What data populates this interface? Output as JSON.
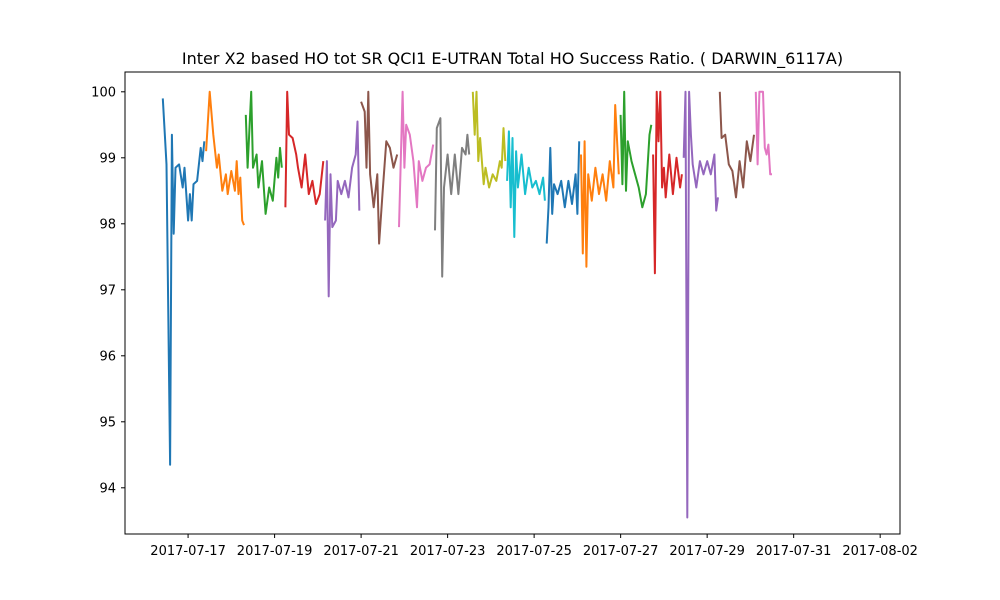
{
  "chart_data": {
    "type": "line",
    "title": "Inter X2 based HO tot SR QCI1 E-UTRAN Total HO Success Ratio. ( DARWIN_6117A)",
    "xlabel": "",
    "ylabel": "",
    "xlim": [
      "2017-07-15 13:00",
      "2017-08-02 11:00"
    ],
    "ylim": [
      93.3,
      100.3
    ],
    "x_ticks": [
      "2017-07-17",
      "2017-07-19",
      "2017-07-21",
      "2017-07-23",
      "2017-07-25",
      "2017-07-27",
      "2017-07-29",
      "2017-07-31",
      "2017-08-02"
    ],
    "y_ticks": [
      94,
      95,
      96,
      97,
      98,
      99,
      100
    ],
    "grid": false,
    "legend": "none",
    "series": [
      {
        "color": "#1f77b4",
        "points": [
          [
            "2017-07-16 10:00",
            99.9
          ],
          [
            "2017-07-16 12:00",
            98.9
          ],
          [
            "2017-07-16 14:00",
            94.35
          ],
          [
            "2017-07-16 15:00",
            99.35
          ],
          [
            "2017-07-16 16:00",
            97.85
          ],
          [
            "2017-07-16 17:00",
            98.85
          ],
          [
            "2017-07-16 19:00",
            98.9
          ],
          [
            "2017-07-16 21:00",
            98.55
          ],
          [
            "2017-07-16 22:00",
            98.85
          ],
          [
            "2017-07-17 00:00",
            98.05
          ],
          [
            "2017-07-17 01:00",
            98.45
          ],
          [
            "2017-07-17 02:00",
            98.05
          ],
          [
            "2017-07-17 03:00",
            98.6
          ],
          [
            "2017-07-17 05:00",
            98.65
          ],
          [
            "2017-07-17 07:00",
            99.15
          ],
          [
            "2017-07-17 08:00",
            98.95
          ],
          [
            "2017-07-17 09:00",
            99.25
          ]
        ]
      },
      {
        "color": "#ff7f0e",
        "points": [
          [
            "2017-07-17 10:00",
            99.1
          ],
          [
            "2017-07-17 12:00",
            100.0
          ],
          [
            "2017-07-17 14:00",
            99.35
          ],
          [
            "2017-07-17 16:00",
            98.85
          ],
          [
            "2017-07-17 17:00",
            99.05
          ],
          [
            "2017-07-17 19:00",
            98.5
          ],
          [
            "2017-07-17 21:00",
            98.75
          ],
          [
            "2017-07-17 22:00",
            98.45
          ],
          [
            "2017-07-18 00:00",
            98.8
          ],
          [
            "2017-07-18 02:00",
            98.5
          ],
          [
            "2017-07-18 03:00",
            98.95
          ],
          [
            "2017-07-18 04:00",
            98.45
          ],
          [
            "2017-07-18 05:00",
            98.7
          ],
          [
            "2017-07-18 06:00",
            98.05
          ],
          [
            "2017-07-18 07:00",
            97.98
          ]
        ]
      },
      {
        "color": "#2ca02c",
        "points": [
          [
            "2017-07-18 08:00",
            99.65
          ],
          [
            "2017-07-18 09:00",
            98.85
          ],
          [
            "2017-07-18 11:00",
            100.0
          ],
          [
            "2017-07-18 12:00",
            98.85
          ],
          [
            "2017-07-18 14:00",
            99.05
          ],
          [
            "2017-07-18 15:00",
            98.55
          ],
          [
            "2017-07-18 17:00",
            98.95
          ],
          [
            "2017-07-18 19:00",
            98.15
          ],
          [
            "2017-07-18 21:00",
            98.55
          ],
          [
            "2017-07-18 23:00",
            98.35
          ],
          [
            "2017-07-19 01:00",
            99.0
          ],
          [
            "2017-07-19 02:00",
            98.7
          ],
          [
            "2017-07-19 03:00",
            99.15
          ],
          [
            "2017-07-19 04:00",
            98.85
          ]
        ]
      },
      {
        "color": "#d62728",
        "points": [
          [
            "2017-07-19 06:00",
            98.25
          ],
          [
            "2017-07-19 07:00",
            100.0
          ],
          [
            "2017-07-19 08:00",
            99.35
          ],
          [
            "2017-07-19 10:00",
            99.3
          ],
          [
            "2017-07-19 12:00",
            99.05
          ],
          [
            "2017-07-19 13:00",
            98.85
          ],
          [
            "2017-07-19 15:00",
            98.55
          ],
          [
            "2017-07-19 17:00",
            99.05
          ],
          [
            "2017-07-19 19:00",
            98.45
          ],
          [
            "2017-07-19 21:00",
            98.65
          ],
          [
            "2017-07-19 23:00",
            98.3
          ],
          [
            "2017-07-20 01:00",
            98.45
          ],
          [
            "2017-07-20 03:00",
            98.95
          ]
        ]
      },
      {
        "color": "#9467bd",
        "points": [
          [
            "2017-07-20 04:00",
            98.05
          ],
          [
            "2017-07-20 05:00",
            98.95
          ],
          [
            "2017-07-20 06:00",
            96.9
          ],
          [
            "2017-07-20 07:00",
            98.75
          ],
          [
            "2017-07-20 08:00",
            97.95
          ],
          [
            "2017-07-20 10:00",
            98.05
          ],
          [
            "2017-07-20 11:00",
            98.65
          ],
          [
            "2017-07-20 13:00",
            98.45
          ],
          [
            "2017-07-20 15:00",
            98.65
          ],
          [
            "2017-07-20 17:00",
            98.4
          ],
          [
            "2017-07-20 19:00",
            98.85
          ],
          [
            "2017-07-20 21:00",
            99.05
          ],
          [
            "2017-07-20 22:00",
            99.55
          ],
          [
            "2017-07-20 23:00",
            98.2
          ]
        ]
      },
      {
        "color": "#8c564b",
        "points": [
          [
            "2017-07-21 00:00",
            99.85
          ],
          [
            "2017-07-21 02:00",
            99.7
          ],
          [
            "2017-07-21 03:00",
            98.85
          ],
          [
            "2017-07-21 04:00",
            100.0
          ],
          [
            "2017-07-21 05:00",
            98.75
          ],
          [
            "2017-07-21 07:00",
            98.25
          ],
          [
            "2017-07-21 09:00",
            98.75
          ],
          [
            "2017-07-21 10:00",
            97.7
          ],
          [
            "2017-07-21 12:00",
            98.5
          ],
          [
            "2017-07-21 14:00",
            99.25
          ],
          [
            "2017-07-21 16:00",
            99.15
          ],
          [
            "2017-07-21 18:00",
            98.85
          ],
          [
            "2017-07-21 20:00",
            99.05
          ]
        ]
      },
      {
        "color": "#e377c2",
        "points": [
          [
            "2017-07-21 21:00",
            97.95
          ],
          [
            "2017-07-21 23:00",
            100.0
          ],
          [
            "2017-07-22 00:00",
            98.85
          ],
          [
            "2017-07-22 01:00",
            99.5
          ],
          [
            "2017-07-22 03:00",
            99.35
          ],
          [
            "2017-07-22 05:00",
            98.95
          ],
          [
            "2017-07-22 07:00",
            98.25
          ],
          [
            "2017-07-22 08:00",
            98.95
          ],
          [
            "2017-07-22 10:00",
            98.65
          ],
          [
            "2017-07-22 12:00",
            98.85
          ],
          [
            "2017-07-22 14:00",
            98.9
          ],
          [
            "2017-07-22 16:00",
            99.2
          ]
        ]
      },
      {
        "color": "#7f7f7f",
        "points": [
          [
            "2017-07-22 17:00",
            97.9
          ],
          [
            "2017-07-22 18:00",
            99.45
          ],
          [
            "2017-07-22 20:00",
            99.6
          ],
          [
            "2017-07-22 21:00",
            97.2
          ],
          [
            "2017-07-22 22:00",
            98.55
          ],
          [
            "2017-07-23 00:00",
            99.05
          ],
          [
            "2017-07-23 02:00",
            98.45
          ],
          [
            "2017-07-23 04:00",
            99.05
          ],
          [
            "2017-07-23 06:00",
            98.45
          ],
          [
            "2017-07-23 08:00",
            99.15
          ],
          [
            "2017-07-23 10:00",
            99.05
          ],
          [
            "2017-07-23 11:00",
            99.35
          ],
          [
            "2017-07-23 12:00",
            99.05
          ]
        ]
      },
      {
        "color": "#bcbd22",
        "points": [
          [
            "2017-07-23 14:00",
            100.0
          ],
          [
            "2017-07-23 15:00",
            99.35
          ],
          [
            "2017-07-23 16:00",
            100.0
          ],
          [
            "2017-07-23 17:00",
            98.95
          ],
          [
            "2017-07-23 18:00",
            99.3
          ],
          [
            "2017-07-23 20:00",
            98.6
          ],
          [
            "2017-07-23 21:00",
            98.85
          ],
          [
            "2017-07-23 23:00",
            98.55
          ],
          [
            "2017-07-24 01:00",
            98.75
          ],
          [
            "2017-07-24 03:00",
            98.65
          ],
          [
            "2017-07-24 05:00",
            98.95
          ],
          [
            "2017-07-24 06:00",
            98.85
          ],
          [
            "2017-07-24 07:00",
            99.45
          ],
          [
            "2017-07-24 08:00",
            98.95
          ]
        ]
      },
      {
        "color": "#17becf",
        "points": [
          [
            "2017-07-24 09:00",
            98.65
          ],
          [
            "2017-07-24 10:00",
            99.4
          ],
          [
            "2017-07-24 11:00",
            98.25
          ],
          [
            "2017-07-24 12:00",
            99.3
          ],
          [
            "2017-07-24 13:00",
            97.8
          ],
          [
            "2017-07-24 14:00",
            99.1
          ],
          [
            "2017-07-24 15:00",
            98.55
          ],
          [
            "2017-07-24 17:00",
            99.05
          ],
          [
            "2017-07-24 19:00",
            98.45
          ],
          [
            "2017-07-24 21:00",
            98.85
          ],
          [
            "2017-07-24 23:00",
            98.55
          ],
          [
            "2017-07-25 01:00",
            98.65
          ],
          [
            "2017-07-25 03:00",
            98.45
          ],
          [
            "2017-07-25 05:00",
            98.7
          ],
          [
            "2017-07-25 06:00",
            98.35
          ]
        ]
      },
      {
        "color": "#1f77b4",
        "points": [
          [
            "2017-07-25 07:00",
            97.7
          ],
          [
            "2017-07-25 08:00",
            98.25
          ],
          [
            "2017-07-25 09:00",
            99.15
          ],
          [
            "2017-07-25 10:00",
            98.15
          ],
          [
            "2017-07-25 11:00",
            98.6
          ],
          [
            "2017-07-25 13:00",
            98.45
          ],
          [
            "2017-07-25 15:00",
            98.65
          ],
          [
            "2017-07-25 17:00",
            98.25
          ],
          [
            "2017-07-25 19:00",
            98.65
          ],
          [
            "2017-07-25 21:00",
            98.3
          ],
          [
            "2017-07-25 23:00",
            98.75
          ],
          [
            "2017-07-26 00:00",
            98.15
          ],
          [
            "2017-07-26 01:00",
            99.25
          ]
        ]
      },
      {
        "color": "#ff7f0e",
        "points": [
          [
            "2017-07-26 02:00",
            99.05
          ],
          [
            "2017-07-26 03:00",
            97.55
          ],
          [
            "2017-07-26 04:00",
            99.25
          ],
          [
            "2017-07-26 05:00",
            97.35
          ],
          [
            "2017-07-26 06:00",
            98.75
          ],
          [
            "2017-07-26 08:00",
            98.35
          ],
          [
            "2017-07-26 10:00",
            98.85
          ],
          [
            "2017-07-26 12:00",
            98.45
          ],
          [
            "2017-07-26 14:00",
            98.75
          ],
          [
            "2017-07-26 16:00",
            98.35
          ],
          [
            "2017-07-26 18:00",
            98.95
          ],
          [
            "2017-07-26 20:00",
            98.55
          ],
          [
            "2017-07-26 21:00",
            99.8
          ],
          [
            "2017-07-26 23:00",
            98.75
          ]
        ]
      },
      {
        "color": "#2ca02c",
        "points": [
          [
            "2017-07-27 00:00",
            99.65
          ],
          [
            "2017-07-27 01:00",
            98.6
          ],
          [
            "2017-07-27 02:00",
            100.0
          ],
          [
            "2017-07-27 03:00",
            98.5
          ],
          [
            "2017-07-27 04:00",
            99.25
          ],
          [
            "2017-07-27 06:00",
            98.95
          ],
          [
            "2017-07-27 08:00",
            98.75
          ],
          [
            "2017-07-27 10:00",
            98.55
          ],
          [
            "2017-07-27 12:00",
            98.25
          ],
          [
            "2017-07-27 14:00",
            98.45
          ],
          [
            "2017-07-27 16:00",
            99.35
          ],
          [
            "2017-07-27 17:00",
            99.5
          ]
        ]
      },
      {
        "color": "#d62728",
        "points": [
          [
            "2017-07-27 18:00",
            99.05
          ],
          [
            "2017-07-27 19:00",
            97.25
          ],
          [
            "2017-07-27 20:00",
            100.0
          ],
          [
            "2017-07-27 21:00",
            99.25
          ],
          [
            "2017-07-27 22:00",
            100.0
          ],
          [
            "2017-07-27 23:00",
            98.55
          ],
          [
            "2017-07-28 00:00",
            98.85
          ],
          [
            "2017-07-28 01:00",
            98.4
          ],
          [
            "2017-07-28 03:00",
            99.05
          ],
          [
            "2017-07-28 05:00",
            98.45
          ],
          [
            "2017-07-28 07:00",
            99.0
          ],
          [
            "2017-07-28 09:00",
            98.55
          ],
          [
            "2017-07-28 10:00",
            98.75
          ]
        ]
      },
      {
        "color": "#9467bd",
        "points": [
          [
            "2017-07-28 11:00",
            99.0
          ],
          [
            "2017-07-28 12:00",
            100.0
          ],
          [
            "2017-07-28 13:00",
            93.55
          ],
          [
            "2017-07-28 14:00",
            100.0
          ],
          [
            "2017-07-28 15:00",
            99.35
          ],
          [
            "2017-07-28 16:00",
            98.9
          ],
          [
            "2017-07-28 18:00",
            98.55
          ],
          [
            "2017-07-28 20:00",
            98.95
          ],
          [
            "2017-07-28 22:00",
            98.75
          ],
          [
            "2017-07-29 00:00",
            98.95
          ],
          [
            "2017-07-29 02:00",
            98.75
          ],
          [
            "2017-07-29 04:00",
            99.05
          ],
          [
            "2017-07-29 05:00",
            98.2
          ],
          [
            "2017-07-29 06:00",
            98.4
          ]
        ]
      },
      {
        "color": "#8c564b",
        "points": [
          [
            "2017-07-29 07:00",
            100.0
          ],
          [
            "2017-07-29 08:00",
            99.3
          ],
          [
            "2017-07-29 10:00",
            99.35
          ],
          [
            "2017-07-29 12:00",
            98.9
          ],
          [
            "2017-07-29 14:00",
            98.8
          ],
          [
            "2017-07-29 16:00",
            98.4
          ],
          [
            "2017-07-29 18:00",
            98.95
          ],
          [
            "2017-07-29 20:00",
            98.55
          ],
          [
            "2017-07-29 22:00",
            99.25
          ],
          [
            "2017-07-30 00:00",
            98.95
          ],
          [
            "2017-07-30 02:00",
            99.35
          ]
        ]
      },
      {
        "color": "#e377c2",
        "points": [
          [
            "2017-07-30 03:00",
            100.0
          ],
          [
            "2017-07-30 04:00",
            98.9
          ],
          [
            "2017-07-30 05:00",
            100.0
          ],
          [
            "2017-07-30 07:00",
            100.0
          ],
          [
            "2017-07-30 08:00",
            99.15
          ],
          [
            "2017-07-30 09:00",
            99.05
          ],
          [
            "2017-07-30 10:00",
            99.2
          ],
          [
            "2017-07-30 11:00",
            98.75
          ],
          [
            "2017-07-30 12:00",
            98.75
          ]
        ]
      }
    ]
  }
}
